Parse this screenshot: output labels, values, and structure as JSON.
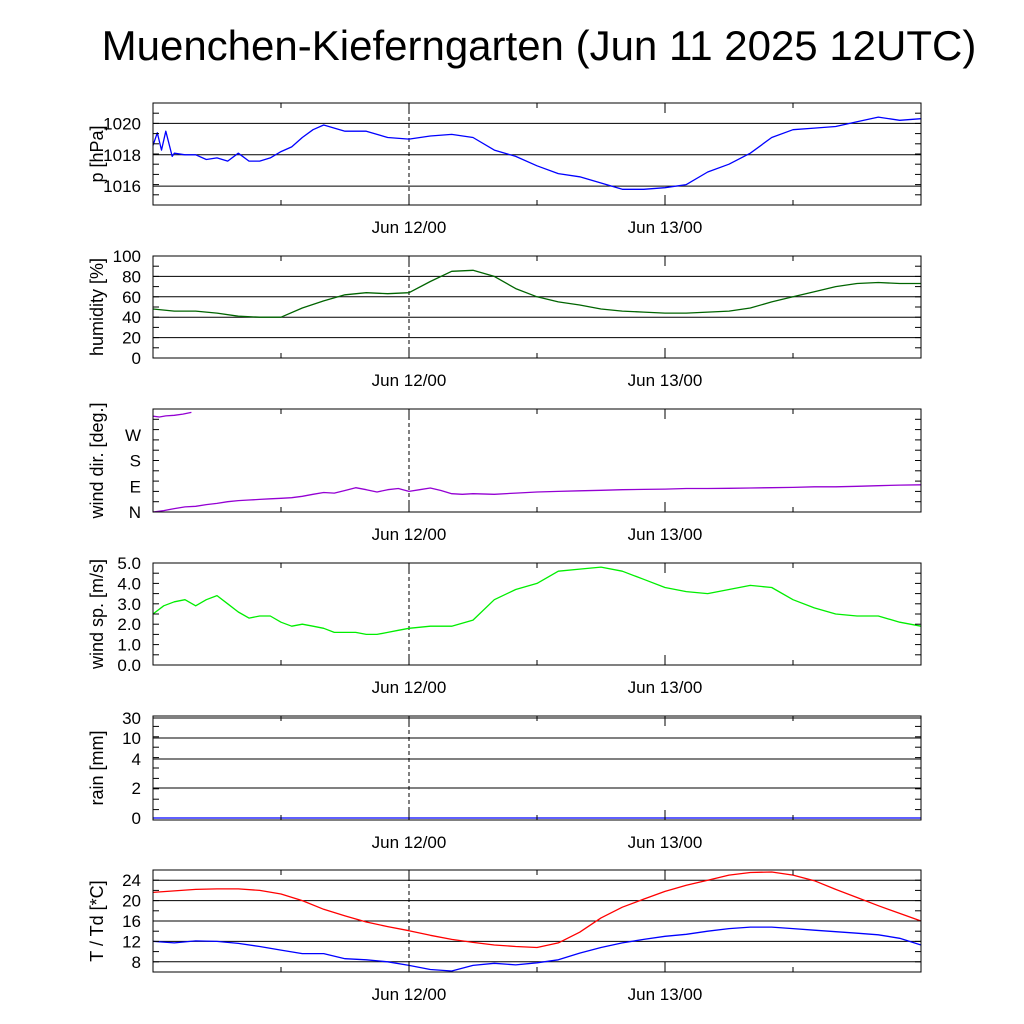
{
  "title": "Muenchen-Kieferngarten (Jun 11 2025 12UTC)",
  "x_tick_labels": [
    "Jun 12/00",
    "Jun 13/00"
  ],
  "chart_data": [
    {
      "type": "line",
      "ylabel": "p [hPa]",
      "ylim": [
        1014.8,
        1021.3
      ],
      "yticks": [
        1016,
        1018,
        1020
      ],
      "ytick_labels": [
        "1016",
        "1018",
        "1020"
      ],
      "grid": true,
      "series": [
        {
          "color": "#0000ff",
          "x": [
            0,
            0.2,
            0.4,
            0.6,
            0.9,
            1,
            1.5,
            2,
            2.5,
            3,
            3.5,
            4,
            4.5,
            5,
            5.5,
            6,
            6.5,
            7,
            7.5,
            8,
            8.5,
            9,
            10,
            11,
            12,
            13,
            14,
            15,
            16,
            17,
            18,
            19,
            20,
            21,
            22,
            23,
            24,
            25,
            26,
            27,
            28,
            29,
            30,
            31,
            32,
            33,
            34,
            35,
            36
          ],
          "y": [
            1018.6,
            1019.4,
            1018.3,
            1019.5,
            1017.9,
            1018.1,
            1018.0,
            1018.0,
            1017.7,
            1017.8,
            1017.6,
            1018.1,
            1017.6,
            1017.6,
            1017.8,
            1018.2,
            1018.5,
            1019.1,
            1019.6,
            1019.9,
            1019.7,
            1019.5,
            1019.5,
            1019.1,
            1019.0,
            1019.2,
            1019.3,
            1019.1,
            1018.3,
            1017.9,
            1017.3,
            1016.8,
            1016.6,
            1016.2,
            1015.8,
            1015.8,
            1015.9,
            1016.1,
            1016.9,
            1017.4,
            1018.1,
            1019.1,
            1019.6,
            1019.7,
            1019.8,
            1020.1,
            1020.4,
            1020.2,
            1020.3
          ]
        }
      ]
    },
    {
      "type": "line",
      "ylabel": "humidity [%]",
      "ylim": [
        0,
        100
      ],
      "yticks": [
        0,
        20,
        40,
        60,
        80,
        100
      ],
      "ytick_labels": [
        "0",
        "20",
        "40",
        "60",
        "80",
        "100"
      ],
      "grid": true,
      "series": [
        {
          "color": "#006400",
          "x": [
            0,
            1,
            2,
            3,
            4,
            5,
            6,
            7,
            8,
            9,
            10,
            11,
            12,
            13,
            14,
            15,
            16,
            17,
            18,
            19,
            20,
            21,
            22,
            23,
            24,
            25,
            26,
            27,
            28,
            29,
            30,
            31,
            32,
            33,
            34,
            35,
            36
          ],
          "y": [
            48,
            46,
            46,
            44,
            41,
            40,
            40,
            49,
            56,
            62,
            64,
            63,
            64,
            75,
            85,
            86,
            80,
            68,
            60,
            55,
            52,
            48,
            46,
            45,
            44,
            44,
            45,
            46,
            49,
            55,
            60,
            65,
            70,
            73,
            74,
            73,
            73
          ]
        }
      ]
    },
    {
      "type": "line",
      "ylabel": "wind dir. [deg.]",
      "ylim": [
        0,
        360
      ],
      "yticks": [
        0,
        90,
        180,
        270
      ],
      "ytick_labels": [
        "N",
        "E",
        "S",
        "W"
      ],
      "grid": false,
      "series": [
        {
          "color": "#9400d3",
          "x": [
            0,
            0.5,
            1,
            1.5,
            2,
            2.5,
            3,
            3.5,
            4,
            4.5,
            5,
            5.5,
            6,
            6.5,
            7,
            7.5,
            8,
            8.5,
            9,
            9.5,
            10,
            10.5,
            11,
            11.5,
            12,
            12.5,
            13,
            13.5,
            14,
            14.5,
            15,
            16,
            17,
            18,
            19,
            20,
            21,
            22,
            23,
            24,
            25,
            26,
            27,
            28,
            29,
            30,
            31,
            32,
            33,
            34,
            35,
            36
          ],
          "y": [
            0,
            5,
            12,
            18,
            20,
            26,
            30,
            36,
            40,
            42,
            44,
            46,
            48,
            50,
            55,
            62,
            68,
            66,
            75,
            85,
            78,
            70,
            78,
            82,
            72,
            78,
            84,
            75,
            64,
            62,
            64,
            62,
            66,
            70,
            72,
            74,
            76,
            78,
            79,
            80,
            82,
            82,
            83,
            84,
            85,
            86,
            88,
            88,
            90,
            92,
            94,
            95
          ]
        },
        {
          "color": "#9400d3",
          "x": [
            0,
            0.3,
            0.6,
            1,
            1.4,
            1.8
          ],
          "y": [
            335,
            332,
            336,
            338,
            342,
            348
          ]
        }
      ]
    },
    {
      "type": "line",
      "ylabel": "wind sp. [m/s]",
      "ylim": [
        0,
        5
      ],
      "yticks": [
        0,
        1,
        2,
        3,
        4,
        5
      ],
      "ytick_labels": [
        "0.0",
        "1.0",
        "2.0",
        "3.0",
        "4.0",
        "5.0"
      ],
      "grid": false,
      "series": [
        {
          "color": "#00ee00",
          "x": [
            0,
            0.5,
            1,
            1.5,
            2,
            2.5,
            3,
            3.5,
            4,
            4.5,
            5,
            5.5,
            6,
            6.5,
            7,
            7.5,
            8,
            8.5,
            9,
            9.5,
            10,
            10.5,
            11,
            11.5,
            12,
            13,
            14,
            15,
            16,
            17,
            18,
            19,
            20,
            21,
            22,
            23,
            24,
            25,
            26,
            27,
            28,
            29,
            30,
            31,
            32,
            33,
            34,
            35,
            36
          ],
          "y": [
            2.5,
            2.9,
            3.1,
            3.2,
            2.9,
            3.2,
            3.4,
            3.0,
            2.6,
            2.3,
            2.4,
            2.4,
            2.1,
            1.9,
            2.0,
            1.9,
            1.8,
            1.6,
            1.6,
            1.6,
            1.5,
            1.5,
            1.6,
            1.7,
            1.8,
            1.9,
            1.9,
            2.2,
            3.2,
            3.7,
            4.0,
            4.6,
            4.7,
            4.8,
            4.6,
            4.2,
            3.8,
            3.6,
            3.5,
            3.7,
            3.9,
            3.8,
            3.2,
            2.8,
            2.5,
            2.4,
            2.4,
            2.1,
            1.9
          ]
        }
      ]
    },
    {
      "type": "line",
      "ylabel": "rain [mm]",
      "ylim": [
        0,
        30
      ],
      "yticks": [
        0,
        2,
        4,
        10,
        30
      ],
      "ytick_labels": [
        "0",
        "2",
        "4",
        "10",
        "30"
      ],
      "grid": true,
      "series": [
        {
          "color": "#0000ff",
          "x": [
            0,
            36
          ],
          "y": [
            0,
            0
          ]
        }
      ]
    },
    {
      "type": "line",
      "ylabel": "T / Td [*C]",
      "ylim": [
        6,
        26
      ],
      "yticks": [
        8,
        12,
        16,
        20,
        24
      ],
      "ytick_labels": [
        "8",
        "12",
        "16",
        "20",
        "24"
      ],
      "grid": true,
      "series": [
        {
          "color": "#ff0000",
          "x": [
            0,
            1,
            2,
            3,
            4,
            5,
            6,
            7,
            8,
            9,
            10,
            11,
            12,
            13,
            14,
            15,
            16,
            17,
            18,
            19,
            20,
            21,
            22,
            23,
            24,
            25,
            26,
            27,
            28,
            29,
            30,
            31,
            32,
            33,
            34,
            35,
            36
          ],
          "y": [
            21.6,
            21.9,
            22.2,
            22.3,
            22.3,
            22.0,
            21.3,
            20.0,
            18.3,
            17.0,
            15.8,
            14.9,
            14.1,
            13.2,
            12.4,
            11.8,
            11.3,
            11.0,
            10.8,
            11.7,
            13.8,
            16.6,
            18.7,
            20.3,
            21.8,
            23.0,
            24.0,
            25.0,
            25.5,
            25.6,
            25.0,
            23.9,
            22.2,
            20.6,
            19.0,
            17.5,
            16.0
          ]
        },
        {
          "color": "#0000ff",
          "x": [
            0,
            1,
            2,
            3,
            4,
            5,
            6,
            7,
            8,
            9,
            10,
            11,
            12,
            13,
            14,
            15,
            16,
            17,
            18,
            19,
            20,
            21,
            22,
            23,
            24,
            25,
            26,
            27,
            28,
            29,
            30,
            31,
            32,
            33,
            34,
            35,
            36
          ],
          "y": [
            12.0,
            11.7,
            12.1,
            12.0,
            11.6,
            11.0,
            10.3,
            9.6,
            9.6,
            8.6,
            8.4,
            8.0,
            7.3,
            6.5,
            6.2,
            7.3,
            7.7,
            7.4,
            7.8,
            8.4,
            9.7,
            10.8,
            11.7,
            12.4,
            13.0,
            13.4,
            14.0,
            14.5,
            14.8,
            14.8,
            14.5,
            14.2,
            13.9,
            13.6,
            13.3,
            12.6,
            11.3
          ]
        }
      ]
    }
  ]
}
